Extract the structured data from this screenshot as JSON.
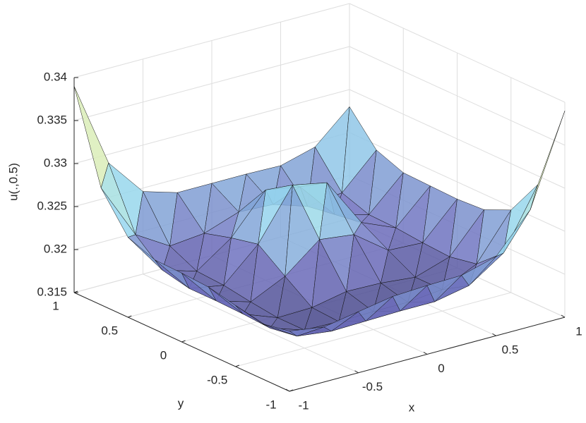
{
  "chart_data": {
    "type": "surface",
    "xlabel": "x",
    "ylabel": "y",
    "zlabel": "u(.,0.5)",
    "x": [
      -1,
      -0.75,
      -0.5,
      -0.25,
      0,
      0.25,
      0.5,
      0.75,
      1
    ],
    "y": [
      -1,
      -0.75,
      -0.5,
      -0.25,
      0,
      0.25,
      0.5,
      0.75,
      1
    ],
    "z": [
      [
        0.322,
        0.3214,
        0.3221,
        0.3228,
        0.323,
        0.3231,
        0.3242,
        0.3286,
        0.339
      ],
      [
        0.3214,
        0.3189,
        0.3184,
        0.3185,
        0.3186,
        0.3186,
        0.3194,
        0.3221,
        0.329
      ],
      [
        0.3221,
        0.3184,
        0.3171,
        0.317,
        0.3171,
        0.3171,
        0.3175,
        0.3194,
        0.3246
      ],
      [
        0.3228,
        0.3186,
        0.3171,
        0.3172,
        0.318,
        0.3179,
        0.3175,
        0.3188,
        0.3232
      ],
      [
        0.323,
        0.3187,
        0.3175,
        0.3194,
        0.3226,
        0.3221,
        0.3192,
        0.319,
        0.323
      ],
      [
        0.3231,
        0.3187,
        0.318,
        0.3217,
        0.3275,
        0.3267,
        0.321,
        0.3193,
        0.3231
      ],
      [
        0.3243,
        0.3194,
        0.3182,
        0.321,
        0.3255,
        0.3248,
        0.3205,
        0.3194,
        0.3232
      ],
      [
        0.3286,
        0.3221,
        0.3197,
        0.3201,
        0.3215,
        0.3213,
        0.32,
        0.3205,
        0.3244
      ],
      [
        0.339,
        0.329,
        0.3246,
        0.3234,
        0.3234,
        0.3234,
        0.3233,
        0.3244,
        0.328
      ]
    ],
    "xlim": [
      -1,
      1
    ],
    "ylim": [
      -1,
      1
    ],
    "zlim": [
      0.315,
      0.34
    ],
    "xticks": [
      -1,
      -0.5,
      0,
      0.5,
      1
    ],
    "yticks": [
      -1,
      -0.5,
      0,
      0.5,
      1
    ],
    "zticks": [
      0.315,
      0.32,
      0.325,
      0.33,
      0.335,
      0.34
    ],
    "grid": true,
    "colormap": [
      "#2c2c66",
      "#6d6dbd",
      "#96d6ee",
      "#c8f2c4",
      "#f2e6a8",
      "#eaa4a0"
    ],
    "edge_color": "#141414"
  }
}
